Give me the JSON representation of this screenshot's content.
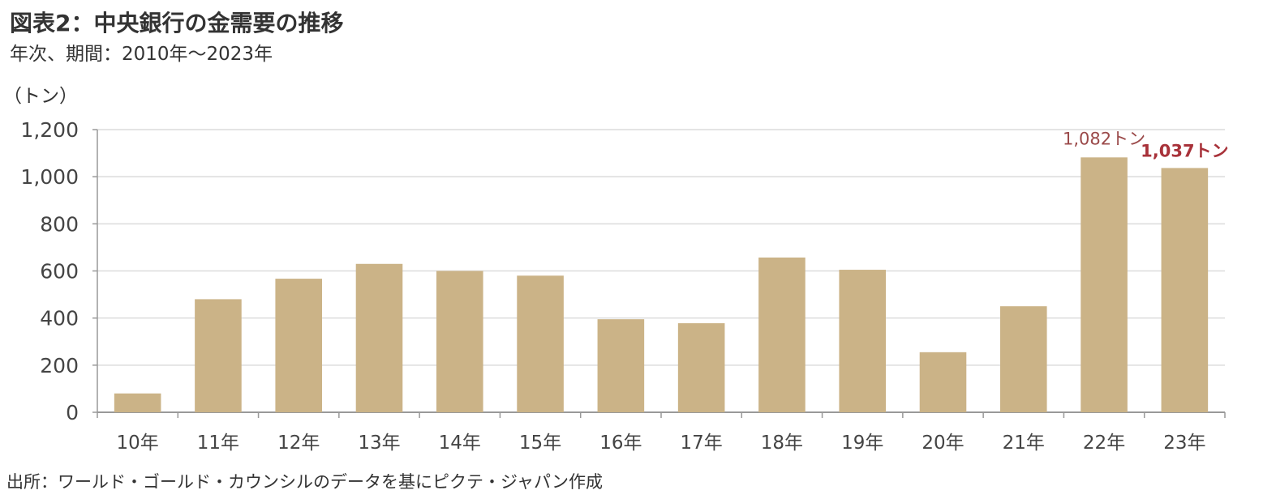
{
  "chart_data": {
    "type": "bar",
    "title": "図表2：中央銀行の金需要の推移",
    "subtitle": "年次、期間：2010年～2023年",
    "y_label": "（トン）",
    "source": "出所：ワールド・ゴールド・カウンシルのデータを基にピクテ・ジャパン作成",
    "categories": [
      "10年",
      "11年",
      "12年",
      "13年",
      "14年",
      "15年",
      "16年",
      "17年",
      "18年",
      "19年",
      "20年",
      "21年",
      "22年",
      "23年"
    ],
    "values": [
      80,
      480,
      567,
      630,
      600,
      580,
      395,
      378,
      657,
      605,
      255,
      450,
      1082,
      1037
    ],
    "value_labels": [
      null,
      null,
      null,
      null,
      null,
      null,
      null,
      null,
      null,
      null,
      null,
      null,
      "1,082トン",
      "1,037トン"
    ],
    "color": "#cbb387",
    "ylim": [
      0,
      1200
    ],
    "yticks": [
      0,
      200,
      400,
      600,
      800,
      {
        "value": 1000,
        "label": "1,000"
      },
      {
        "value": 1200,
        "label": "1,200"
      }
    ],
    "grid": true
  }
}
